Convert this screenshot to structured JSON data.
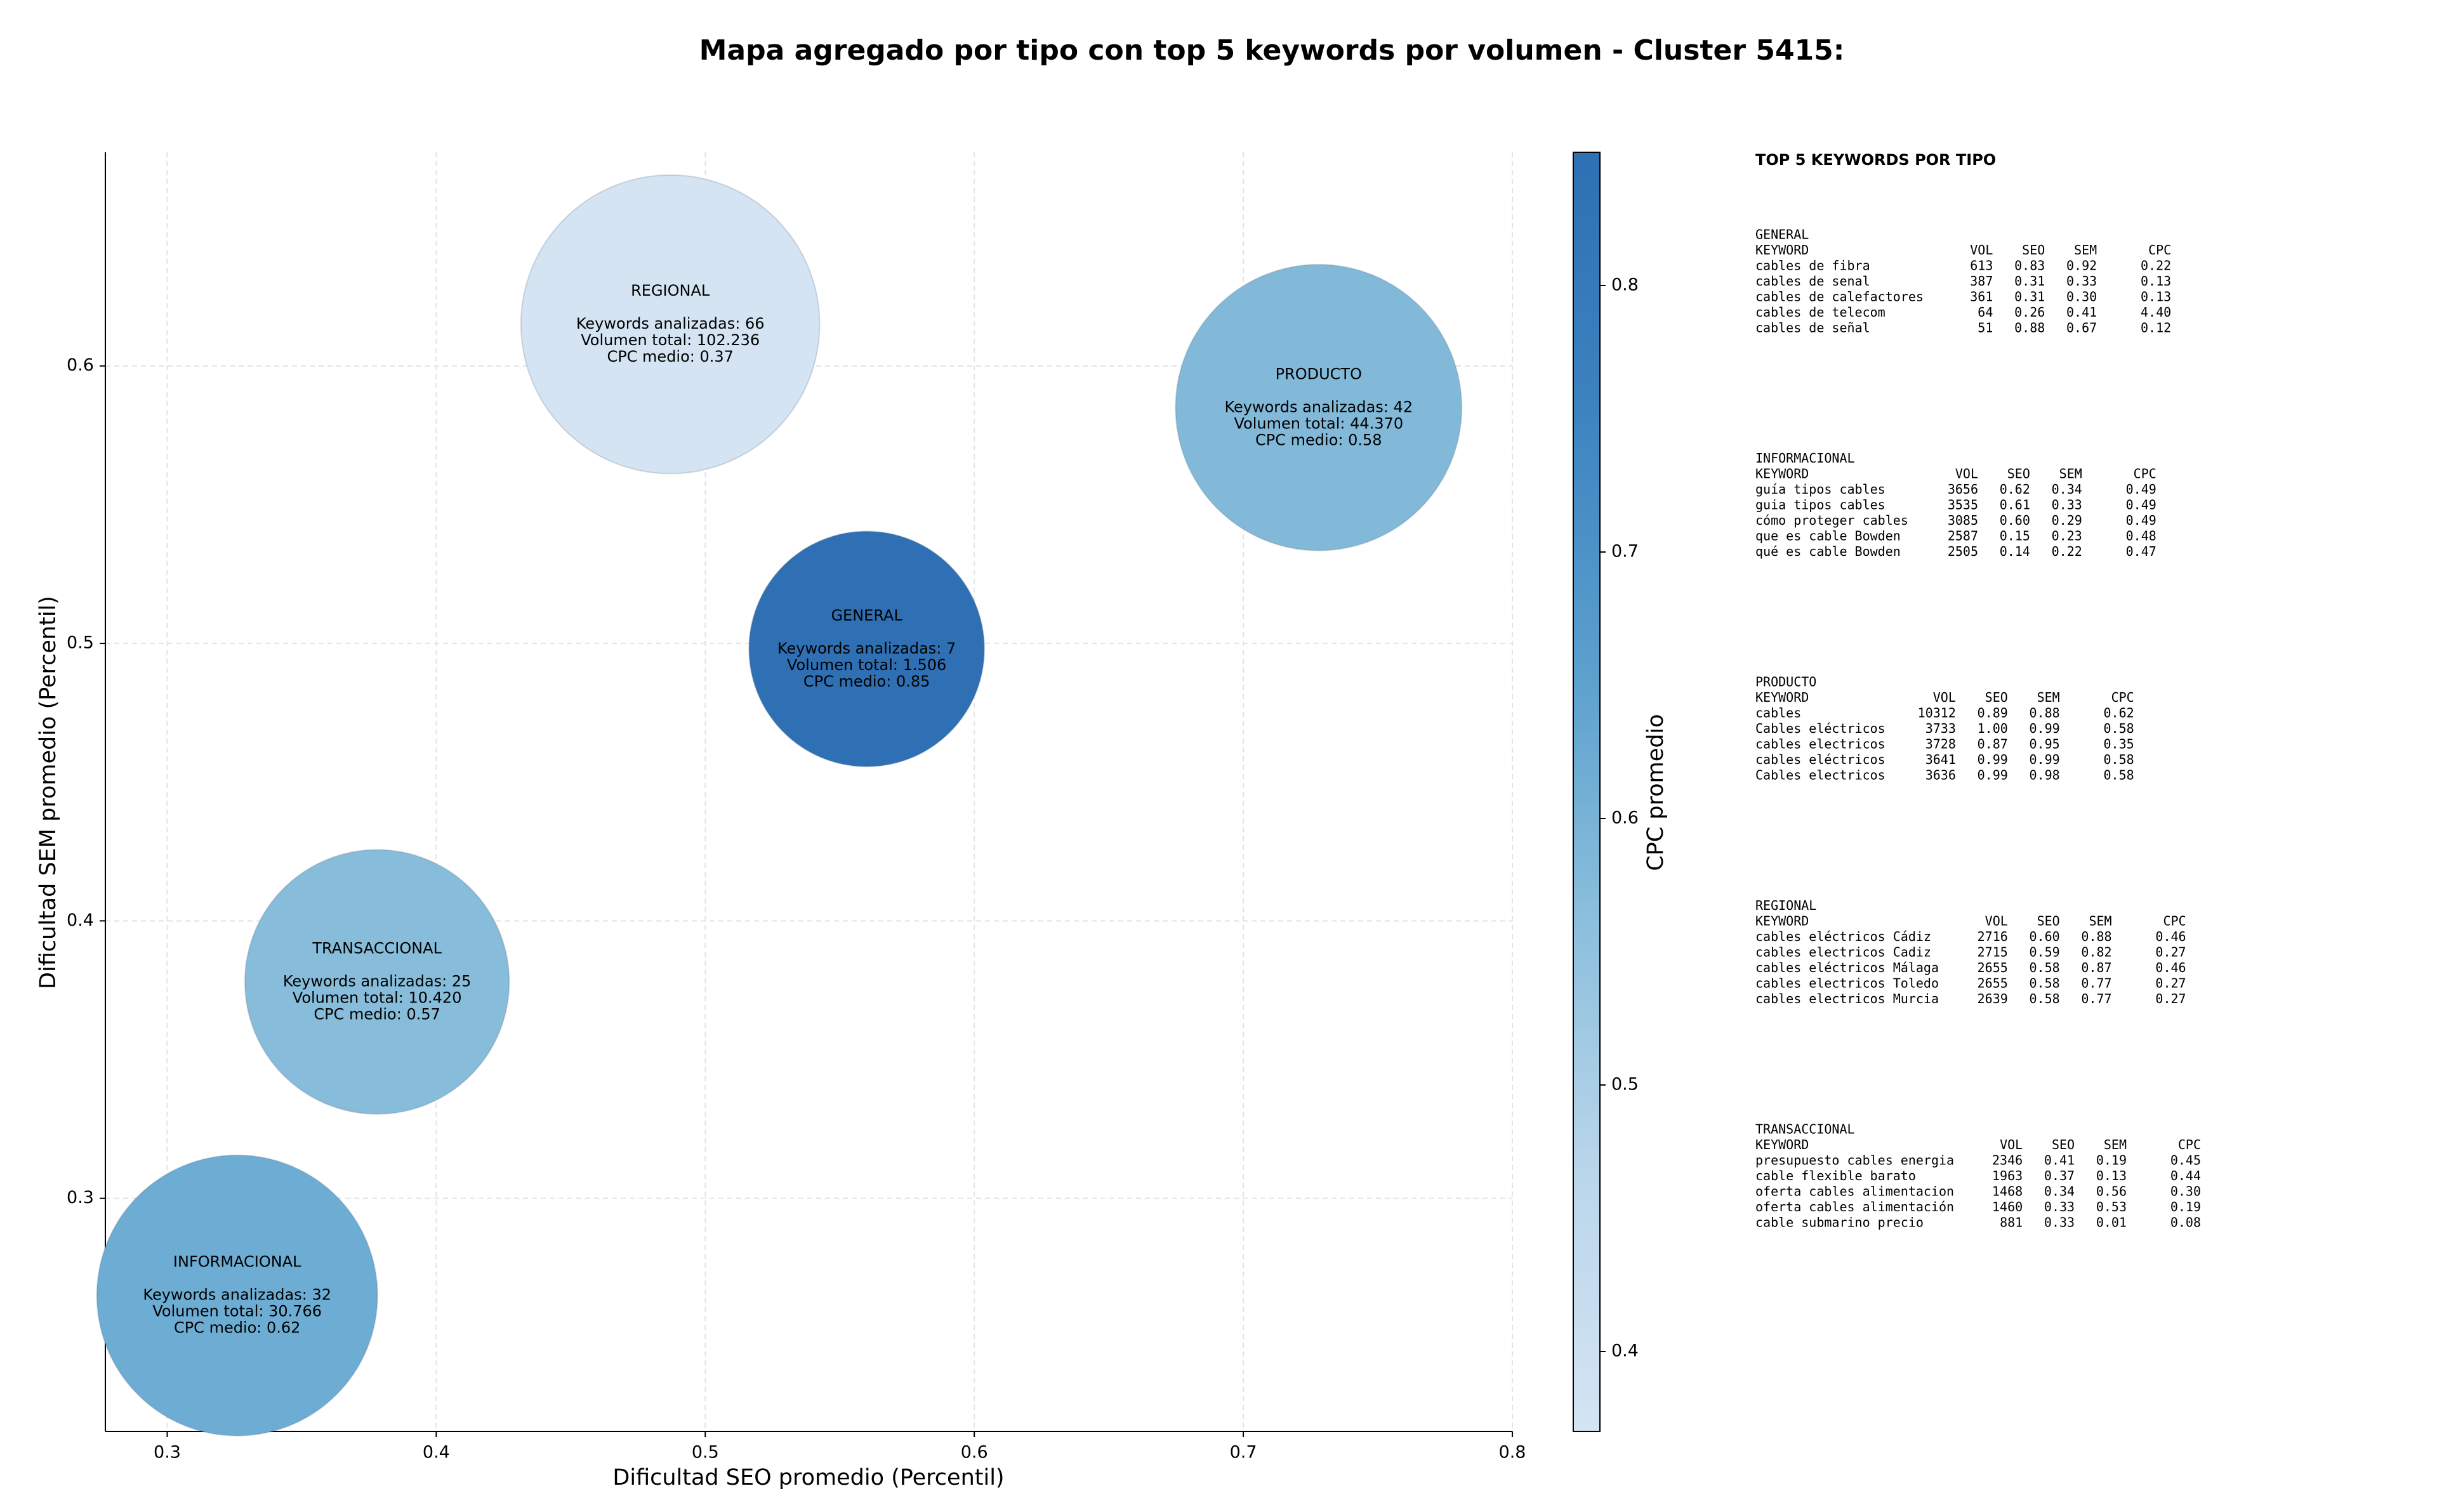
{
  "chart_data": {
    "type": "bubble",
    "title": "Mapa agregado por tipo con top 5 keywords por volumen - Cluster 5415:",
    "xlabel": "Dificultad SEO promedio (Percentil)",
    "ylabel": "Dificultad SEM promedio (Percentil)",
    "xlim": [
      0.277,
      0.8
    ],
    "ylim": [
      0.216,
      0.677
    ],
    "xticks": [
      0.3,
      0.4,
      0.5,
      0.6,
      0.7,
      0.8
    ],
    "yticks": [
      0.3,
      0.4,
      0.5,
      0.6
    ],
    "grid": true,
    "series": [
      {
        "name": "REGIONAL",
        "x": 0.487,
        "y": 0.615,
        "volume": 102236,
        "cpc": 0.37,
        "labels": [
          "Keywords analizadas: 66",
          "Volumen total: 102.236",
          "CPC medio: 0.37"
        ]
      },
      {
        "name": "PRODUCTO",
        "x": 0.728,
        "y": 0.585,
        "volume": 44370,
        "cpc": 0.58,
        "labels": [
          "Keywords analizadas: 42",
          "Volumen total: 44.370",
          "CPC medio: 0.58"
        ]
      },
      {
        "name": "GENERAL",
        "x": 0.56,
        "y": 0.498,
        "volume": 1506,
        "cpc": 0.85,
        "labels": [
          "Keywords analizadas: 7",
          "Volumen total: 1.506",
          "CPC medio: 0.85"
        ]
      },
      {
        "name": "TRANSACCIONAL",
        "x": 0.378,
        "y": 0.378,
        "volume": 10420,
        "cpc": 0.57,
        "labels": [
          "Keywords analizadas: 25",
          "Volumen total: 10.420",
          "CPC medio: 0.57"
        ]
      },
      {
        "name": "INFORMACIONAL",
        "x": 0.326,
        "y": 0.265,
        "volume": 30766,
        "cpc": 0.62,
        "labels": [
          "Keywords analizadas: 32",
          "Volumen total: 30.766",
          "CPC medio: 0.62"
        ]
      }
    ],
    "colorbar": {
      "label": "CPC promedio",
      "lim": [
        0.37,
        0.85
      ],
      "ticks": [
        0.4,
        0.5,
        0.6,
        0.7,
        0.8
      ],
      "colors": [
        "#d4e4f3",
        "#bad6eb",
        "#8bbfdc",
        "#5a9fcd",
        "#3d83bf",
        "#2e70b3"
      ]
    }
  },
  "keyword_panel": {
    "title": "TOP 5 KEYWORDS POR TIPO",
    "groups": [
      {
        "name": "GENERAL",
        "columns": [
          "KEYWORD",
          "VOL",
          "SEO",
          "SEM",
          "CPC"
        ],
        "rows": [
          [
            "cables de fibra",
            "613",
            "0.83",
            "0.92",
            "0.22"
          ],
          [
            "cables de senal",
            "387",
            "0.31",
            "0.33",
            "0.13"
          ],
          [
            "cables de calefactores",
            "361",
            "0.31",
            "0.30",
            "0.13"
          ],
          [
            "cables de telecom",
            "64",
            "0.26",
            "0.41",
            "4.40"
          ],
          [
            "cables de señal",
            "51",
            "0.88",
            "0.67",
            "0.12"
          ]
        ]
      },
      {
        "name": "INFORMACIONAL",
        "columns": [
          "KEYWORD",
          "VOL",
          "SEO",
          "SEM",
          "CPC"
        ],
        "rows": [
          [
            "guía tipos cables",
            "3656",
            "0.62",
            "0.34",
            "0.49"
          ],
          [
            "guia tipos cables",
            "3535",
            "0.61",
            "0.33",
            "0.49"
          ],
          [
            "cómo proteger cables",
            "3085",
            "0.60",
            "0.29",
            "0.49"
          ],
          [
            "que es cable Bowden",
            "2587",
            "0.15",
            "0.23",
            "0.48"
          ],
          [
            "qué es cable Bowden",
            "2505",
            "0.14",
            "0.22",
            "0.47"
          ]
        ]
      },
      {
        "name": "PRODUCTO",
        "columns": [
          "KEYWORD",
          "VOL",
          "SEO",
          "SEM",
          "CPC"
        ],
        "rows": [
          [
            "cables",
            "10312",
            "0.89",
            "0.88",
            "0.62"
          ],
          [
            "Cables eléctricos",
            "3733",
            "1.00",
            "0.99",
            "0.58"
          ],
          [
            "cables electricos",
            "3728",
            "0.87",
            "0.95",
            "0.35"
          ],
          [
            "cables eléctricos",
            "3641",
            "0.99",
            "0.99",
            "0.58"
          ],
          [
            "Cables electricos",
            "3636",
            "0.99",
            "0.98",
            "0.58"
          ]
        ]
      },
      {
        "name": "REGIONAL",
        "columns": [
          "KEYWORD",
          "VOL",
          "SEO",
          "SEM",
          "CPC"
        ],
        "rows": [
          [
            "cables eléctricos Cádiz",
            "2716",
            "0.60",
            "0.88",
            "0.46"
          ],
          [
            "cables electricos Cadiz",
            "2715",
            "0.59",
            "0.82",
            "0.27"
          ],
          [
            "cables eléctricos Málaga",
            "2655",
            "0.58",
            "0.87",
            "0.46"
          ],
          [
            "cables electricos Toledo",
            "2655",
            "0.58",
            "0.77",
            "0.27"
          ],
          [
            "cables electricos Murcia",
            "2639",
            "0.58",
            "0.77",
            "0.27"
          ]
        ]
      },
      {
        "name": "TRANSACCIONAL",
        "columns": [
          "KEYWORD",
          "VOL",
          "SEO",
          "SEM",
          "CPC"
        ],
        "rows": [
          [
            "presupuesto cables energia",
            "2346",
            "0.41",
            "0.19",
            "0.45"
          ],
          [
            "cable flexible barato",
            "1963",
            "0.37",
            "0.13",
            "0.44"
          ],
          [
            "oferta cables alimentacion",
            "1468",
            "0.34",
            "0.56",
            "0.30"
          ],
          [
            "oferta cables alimentación",
            "1460",
            "0.33",
            "0.53",
            "0.19"
          ],
          [
            "cable submarino precio",
            "881",
            "0.33",
            "0.01",
            "0.08"
          ]
        ]
      }
    ]
  }
}
